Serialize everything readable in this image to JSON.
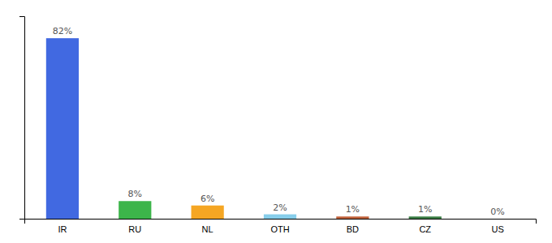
{
  "chart_data": {
    "type": "bar",
    "categories": [
      "IR",
      "RU",
      "NL",
      "OTH",
      "BD",
      "CZ",
      "US"
    ],
    "values": [
      82,
      8,
      6,
      2,
      1,
      1,
      0
    ],
    "value_labels": [
      "82%",
      "8%",
      "6%",
      "2%",
      "1%",
      "1%",
      "0%"
    ],
    "colors": [
      "#4169e1",
      "#3cb54a",
      "#f5a623",
      "#87ceeb",
      "#c0613a",
      "#3a7d44",
      "#d3d3d3"
    ],
    "ylim": [
      0,
      92
    ],
    "yticks": [],
    "grid": false,
    "data_labels": true,
    "tick_labels": "x"
  }
}
